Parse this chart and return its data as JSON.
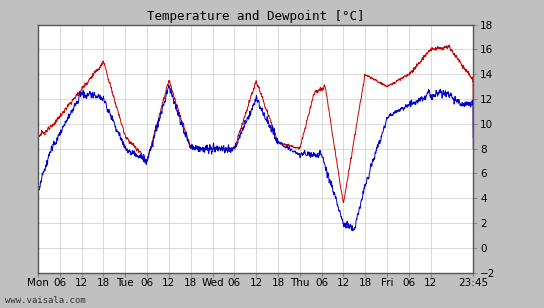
{
  "title": "Temperature and Dewpoint [°C]",
  "ylim": [
    -2,
    18
  ],
  "yticks": [
    -2,
    0,
    2,
    4,
    6,
    8,
    10,
    12,
    14,
    16,
    18
  ],
  "temp_color": "#cc0000",
  "dewpoint_color": "#0000cc",
  "bg_color": "#ffffff",
  "grid_color": "#cccccc",
  "outer_bg": "#c0c0c0",
  "watermark": "www.vaisala.com",
  "xtick_labels": [
    "Mon",
    "06",
    "12",
    "18",
    "Tue",
    "06",
    "12",
    "18",
    "Wed",
    "06",
    "12",
    "18",
    "Thu",
    "06",
    "12",
    "18",
    "Fri",
    "06",
    "12",
    "23:45"
  ],
  "xtick_positions": [
    0,
    6,
    12,
    18,
    24,
    30,
    36,
    42,
    48,
    54,
    60,
    66,
    72,
    78,
    84,
    90,
    96,
    102,
    108,
    119.75
  ],
  "total_hours": 119.75,
  "line_width": 0.7,
  "noise_temp": 0.15,
  "noise_dew": 0.25
}
